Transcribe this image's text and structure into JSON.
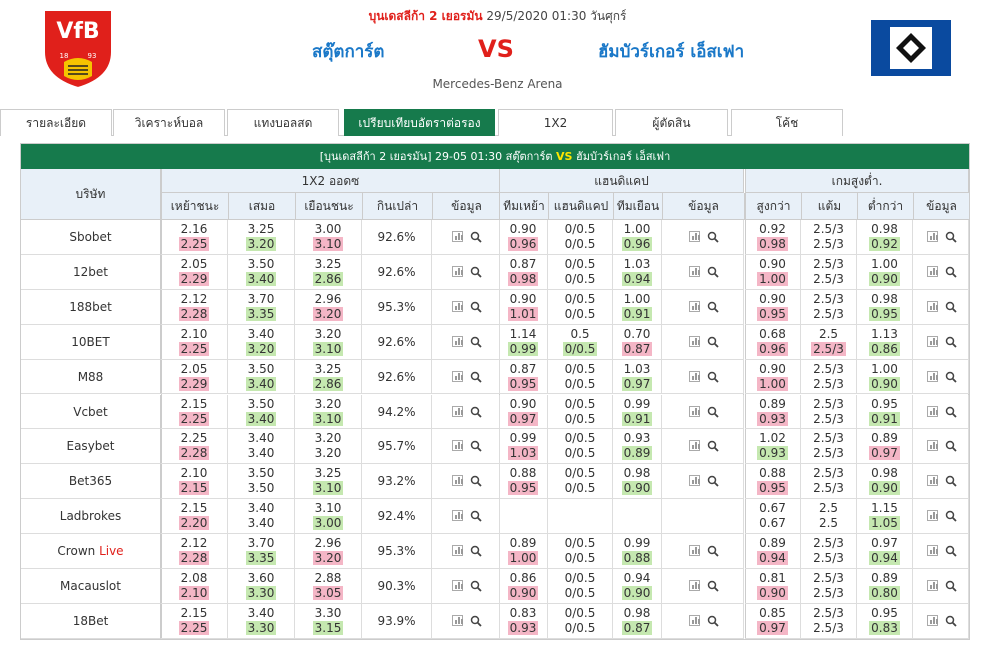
{
  "header": {
    "league": "บุนเดสลีก้า 2 เยอรมัน",
    "datetime": "29/5/2020 01:30 วันศุกร์",
    "home_team": "สตุ๊ตการ์ต",
    "away_team": "ฮัมบัวร์เกอร์ เอ็สเฟา",
    "vs": "VS",
    "venue": "Mercedes-Benz Arena",
    "home_logo_text": "VfB 1893"
  },
  "tabs": [
    {
      "label": "รายละเอียด",
      "active": false
    },
    {
      "label": "วิเคราะห์บอล",
      "active": false
    },
    {
      "label": "แทงบอลสด",
      "active": false
    },
    {
      "label": "เปรียบเทียบอัตราต่อรอง",
      "active": true
    },
    {
      "label": "1X2",
      "active": false
    },
    {
      "label": "ผู้ตัดสิน",
      "active": false
    },
    {
      "label": "โค้ช",
      "active": false
    }
  ],
  "table": {
    "title_prefix": "[บุนเดสลีก้า 2 เยอรมัน]  29-05 01:30  สตุ๊ตการ์ต",
    "title_vs": "VS",
    "title_suffix": "ฮัมบัวร์เกอร์ เอ็สเฟา",
    "bookmaker_header": "บริษัท",
    "section_1x2": "1X2 ออดซ",
    "section_hdp": "แฮนดิแคป",
    "section_ou": "เกมสูงต่ำ.",
    "cols_1x2": [
      "เหย้าชนะ",
      "เสมอ",
      "เยือนชนะ",
      "กินเปล่า",
      "ข้อมูล"
    ],
    "cols_hdp": [
      "ทีมเหย้า",
      "แฮนดิแคป",
      "ทีมเยือน",
      "ข้อมูล"
    ],
    "cols_ou": [
      "สูงกว่า",
      "แต้ม",
      "ต่ำกว่า",
      "ข้อมูล"
    ],
    "rows": [
      {
        "name": "Sbobet",
        "live": "",
        "x": [
          [
            "2.16",
            "2.25",
            "p"
          ],
          [
            "3.25",
            "3.20",
            "g"
          ],
          [
            "3.00",
            "3.10",
            "p"
          ]
        ],
        "ret": "92.6%",
        "h": [
          [
            "0.90",
            "0.96",
            "p"
          ],
          [
            "0/0.5",
            "0/0.5",
            ""
          ],
          [
            "1.00",
            "0.96",
            "g"
          ]
        ],
        "o": [
          [
            "0.92",
            "0.98",
            "p"
          ],
          [
            "2.5/3",
            "2.5/3",
            ""
          ],
          [
            "0.98",
            "0.92",
            "g"
          ]
        ]
      },
      {
        "name": "12bet",
        "live": "",
        "x": [
          [
            "2.05",
            "2.29",
            "p"
          ],
          [
            "3.50",
            "3.40",
            "g"
          ],
          [
            "3.25",
            "2.86",
            "g"
          ]
        ],
        "ret": "92.6%",
        "h": [
          [
            "0.87",
            "0.98",
            "p"
          ],
          [
            "0/0.5",
            "0/0.5",
            ""
          ],
          [
            "1.03",
            "0.94",
            "g"
          ]
        ],
        "o": [
          [
            "0.90",
            "1.00",
            "p"
          ],
          [
            "2.5/3",
            "2.5/3",
            ""
          ],
          [
            "1.00",
            "0.90",
            "g"
          ]
        ]
      },
      {
        "name": "188bet",
        "live": "",
        "x": [
          [
            "2.12",
            "2.28",
            "p"
          ],
          [
            "3.70",
            "3.35",
            "g"
          ],
          [
            "2.96",
            "3.20",
            "p"
          ]
        ],
        "ret": "95.3%",
        "h": [
          [
            "0.90",
            "1.01",
            "p"
          ],
          [
            "0/0.5",
            "0/0.5",
            ""
          ],
          [
            "1.00",
            "0.91",
            "g"
          ]
        ],
        "o": [
          [
            "0.90",
            "0.95",
            "p"
          ],
          [
            "2.5/3",
            "2.5/3",
            ""
          ],
          [
            "0.98",
            "0.95",
            "g"
          ]
        ]
      },
      {
        "name": "10BET",
        "live": "",
        "x": [
          [
            "2.10",
            "2.25",
            "p"
          ],
          [
            "3.40",
            "3.20",
            "g"
          ],
          [
            "3.20",
            "3.10",
            "g"
          ]
        ],
        "ret": "92.6%",
        "h": [
          [
            "1.14",
            "0.99",
            "g"
          ],
          [
            "0.5",
            "0/0.5",
            "g"
          ],
          [
            "0.70",
            "0.87",
            "p"
          ]
        ],
        "o": [
          [
            "0.68",
            "0.96",
            "p"
          ],
          [
            "2.5",
            "2.5/3",
            "p"
          ],
          [
            "1.13",
            "0.86",
            "g"
          ]
        ]
      },
      {
        "name": "M88",
        "live": "",
        "x": [
          [
            "2.05",
            "2.29",
            "p"
          ],
          [
            "3.50",
            "3.40",
            "g"
          ],
          [
            "3.25",
            "2.86",
            "g"
          ]
        ],
        "ret": "92.6%",
        "h": [
          [
            "0.87",
            "0.95",
            "p"
          ],
          [
            "0/0.5",
            "0/0.5",
            ""
          ],
          [
            "1.03",
            "0.97",
            "g"
          ]
        ],
        "o": [
          [
            "0.90",
            "1.00",
            "p"
          ],
          [
            "2.5/3",
            "2.5/3",
            ""
          ],
          [
            "1.00",
            "0.90",
            "g"
          ]
        ]
      },
      {
        "name": "Vcbet",
        "live": "",
        "x": [
          [
            "2.15",
            "2.25",
            "p"
          ],
          [
            "3.50",
            "3.40",
            "g"
          ],
          [
            "3.20",
            "3.10",
            "g"
          ]
        ],
        "ret": "94.2%",
        "h": [
          [
            "0.90",
            "0.97",
            "p"
          ],
          [
            "0/0.5",
            "0/0.5",
            ""
          ],
          [
            "0.99",
            "0.91",
            "g"
          ]
        ],
        "o": [
          [
            "0.89",
            "0.93",
            "p"
          ],
          [
            "2.5/3",
            "2.5/3",
            ""
          ],
          [
            "0.95",
            "0.91",
            "g"
          ]
        ]
      },
      {
        "name": "Easybet",
        "live": "",
        "x": [
          [
            "2.25",
            "2.28",
            "p"
          ],
          [
            "3.40",
            "3.40",
            ""
          ],
          [
            "3.20",
            "3.20",
            ""
          ]
        ],
        "ret": "95.7%",
        "h": [
          [
            "0.99",
            "1.03",
            "p"
          ],
          [
            "0/0.5",
            "0/0.5",
            ""
          ],
          [
            "0.93",
            "0.89",
            "g"
          ]
        ],
        "o": [
          [
            "1.02",
            "0.93",
            "g"
          ],
          [
            "2.5/3",
            "2.5/3",
            ""
          ],
          [
            "0.89",
            "0.97",
            "p"
          ]
        ]
      },
      {
        "name": "Bet365",
        "live": "",
        "x": [
          [
            "2.10",
            "2.15",
            "p"
          ],
          [
            "3.50",
            "3.50",
            ""
          ],
          [
            "3.25",
            "3.10",
            "g"
          ]
        ],
        "ret": "93.2%",
        "h": [
          [
            "0.88",
            "0.95",
            "p"
          ],
          [
            "0/0.5",
            "0/0.5",
            ""
          ],
          [
            "0.98",
            "0.90",
            "g"
          ]
        ],
        "o": [
          [
            "0.88",
            "0.95",
            "p"
          ],
          [
            "2.5/3",
            "2.5/3",
            ""
          ],
          [
            "0.98",
            "0.90",
            "g"
          ]
        ]
      },
      {
        "name": "Ladbrokes",
        "live": "",
        "x": [
          [
            "2.15",
            "2.20",
            "p"
          ],
          [
            "3.40",
            "3.40",
            ""
          ],
          [
            "3.10",
            "3.00",
            "g"
          ]
        ],
        "ret": "92.4%",
        "h": null,
        "o": [
          [
            "0.67",
            "0.67",
            ""
          ],
          [
            "2.5",
            "2.5",
            ""
          ],
          [
            "1.15",
            "1.05",
            "g"
          ]
        ]
      },
      {
        "name": "Crown",
        "live": "Live",
        "x": [
          [
            "2.12",
            "2.28",
            "p"
          ],
          [
            "3.70",
            "3.35",
            "g"
          ],
          [
            "2.96",
            "3.20",
            "p"
          ]
        ],
        "ret": "95.3%",
        "h": [
          [
            "0.89",
            "1.00",
            "p"
          ],
          [
            "0/0.5",
            "0/0.5",
            ""
          ],
          [
            "0.99",
            "0.88",
            "g"
          ]
        ],
        "o": [
          [
            "0.89",
            "0.94",
            "p"
          ],
          [
            "2.5/3",
            "2.5/3",
            ""
          ],
          [
            "0.97",
            "0.94",
            "g"
          ]
        ]
      },
      {
        "name": "Macauslot",
        "live": "",
        "x": [
          [
            "2.08",
            "2.10",
            "p"
          ],
          [
            "3.60",
            "3.30",
            "g"
          ],
          [
            "2.88",
            "3.05",
            "p"
          ]
        ],
        "ret": "90.3%",
        "h": [
          [
            "0.86",
            "0.90",
            "p"
          ],
          [
            "0/0.5",
            "0/0.5",
            ""
          ],
          [
            "0.94",
            "0.90",
            "g"
          ]
        ],
        "o": [
          [
            "0.81",
            "0.90",
            "p"
          ],
          [
            "2.5/3",
            "2.5/3",
            ""
          ],
          [
            "0.89",
            "0.80",
            "g"
          ]
        ]
      },
      {
        "name": "18Bet",
        "live": "",
        "x": [
          [
            "2.15",
            "2.25",
            "p"
          ],
          [
            "3.40",
            "3.30",
            "g"
          ],
          [
            "3.30",
            "3.15",
            "g"
          ]
        ],
        "ret": "93.9%",
        "h": [
          [
            "0.83",
            "0.93",
            "p"
          ],
          [
            "0/0.5",
            "0/0.5",
            ""
          ],
          [
            "0.98",
            "0.87",
            "g"
          ]
        ],
        "o": [
          [
            "0.85",
            "0.97",
            "p"
          ],
          [
            "2.5/3",
            "2.5/3",
            ""
          ],
          [
            "0.95",
            "0.83",
            "g"
          ]
        ]
      }
    ]
  },
  "colors": {
    "green": "#167a4c",
    "red": "#e0201b",
    "blue": "#1a78c8",
    "pink": "#f4b6c6",
    "lightgreen": "#c5e8b0",
    "hamburg_blue": "#0a4a9f"
  }
}
